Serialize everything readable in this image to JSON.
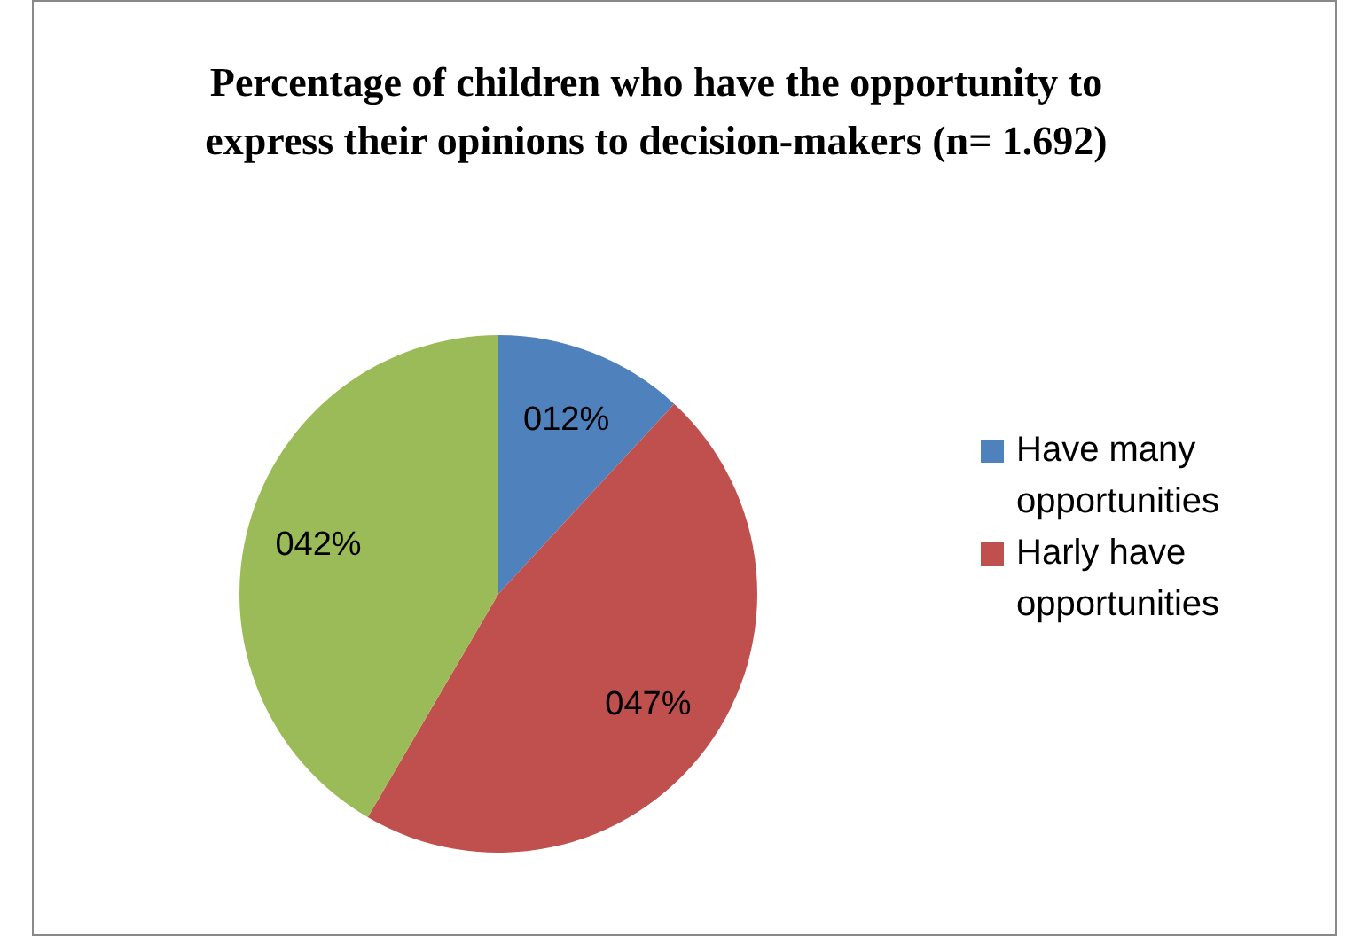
{
  "chart_data": {
    "type": "pie",
    "title": "Percentage of children who have the opportunity to express their opinions to decision-makers (n= 1.692)",
    "categories": [
      "Have many opportunities",
      "Harly have opportunities",
      null
    ],
    "values": [
      12,
      47,
      42
    ],
    "value_labels": [
      "012%",
      "047%",
      "042%"
    ],
    "colors": [
      "#4f81bd",
      "#c0504d",
      "#9bbb59"
    ],
    "legend": "right"
  }
}
